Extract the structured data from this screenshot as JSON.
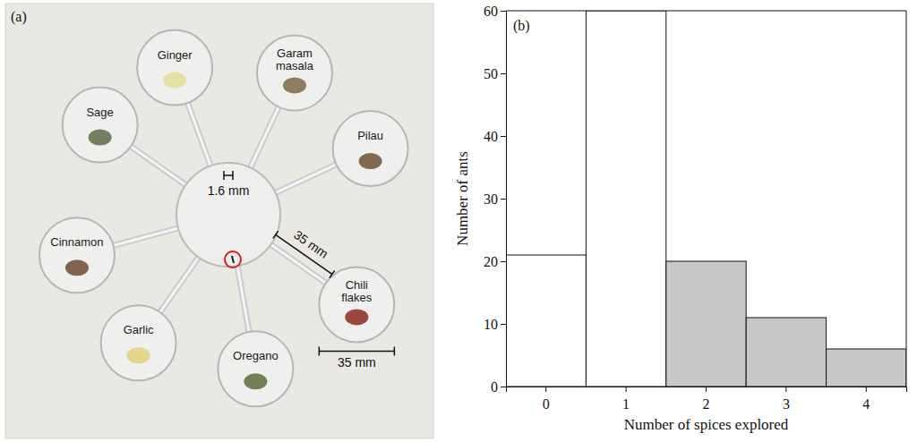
{
  "chart_data": {
    "type": "bar",
    "title": "(b)",
    "x_label": "Number of spices explored",
    "y_label": "Number of ants",
    "categories": [
      "0",
      "1",
      "2",
      "3",
      "4"
    ],
    "values": [
      21,
      60,
      20,
      11,
      6
    ],
    "colors": [
      "#ffffff",
      "#ffffff",
      "#c8c8c8",
      "#c8c8c8",
      "#c8c8c8"
    ],
    "ylim": [
      0,
      60
    ],
    "yticks": [
      0,
      10,
      20,
      30,
      40,
      50,
      60
    ],
    "grid": false
  },
  "diagram": {
    "panel_label": "(a)",
    "dishes": [
      "Ginger",
      "Garam masala",
      "Pilau",
      "Chili flakes",
      "Oregano",
      "Garlic",
      "Cinnamon",
      "Sage"
    ],
    "scale_labels": [
      "1.6 mm",
      "35 mm",
      "35 mm"
    ]
  }
}
